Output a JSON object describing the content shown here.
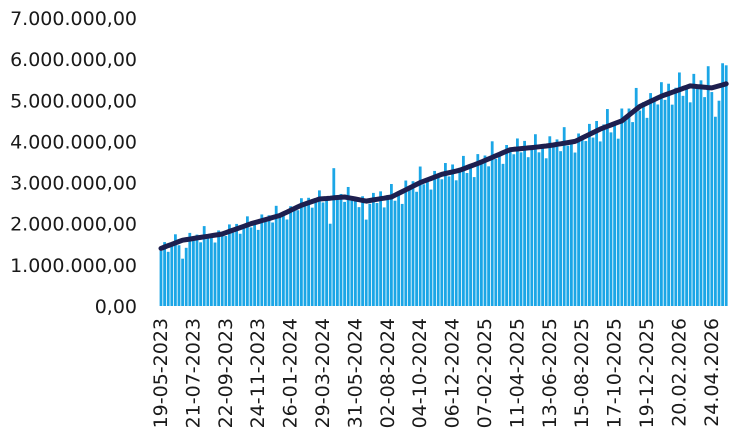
{
  "chart_data": {
    "type": "bar",
    "categories": [
      "19-05-2023",
      null,
      null,
      null,
      null,
      null,
      null,
      null,
      null,
      "21-07-2023",
      null,
      null,
      null,
      null,
      null,
      null,
      null,
      null,
      "22-09-2023",
      null,
      null,
      null,
      null,
      null,
      null,
      null,
      null,
      "24-11-2023",
      null,
      null,
      null,
      null,
      null,
      null,
      null,
      null,
      "26-01-2024",
      null,
      null,
      null,
      null,
      null,
      null,
      null,
      null,
      "29-03-2024",
      null,
      null,
      null,
      null,
      null,
      null,
      null,
      null,
      "31-05-2024",
      null,
      null,
      null,
      null,
      null,
      null,
      null,
      null,
      "02-08-2024",
      null,
      null,
      null,
      null,
      null,
      null,
      null,
      null,
      "04-10-2024",
      null,
      null,
      null,
      null,
      null,
      null,
      null,
      null,
      "06-12-2024",
      null,
      null,
      null,
      null,
      null,
      null,
      null,
      null,
      "07-02-2025",
      null,
      null,
      null,
      null,
      null,
      null,
      null,
      null,
      "11-04-2025",
      null,
      null,
      null,
      null,
      null,
      null,
      null,
      null,
      "13-06-2025",
      null,
      null,
      null,
      null,
      null,
      null,
      null,
      null,
      "15-08-2025",
      null,
      null,
      null,
      null,
      null,
      null,
      null,
      null,
      "17-10-2025",
      null,
      null,
      null,
      null,
      null,
      null,
      null,
      null,
      "19-12-2025",
      null,
      null,
      null,
      null,
      null,
      null,
      null,
      null,
      "20.02.2026",
      null,
      null,
      null,
      null,
      null,
      null,
      null,
      null,
      "24.04.2026",
      null,
      null,
      null,
      null
    ],
    "series": [
      {
        "type": "bar",
        "color": "#1ba6e6",
        "values": [
          1340000,
          1553000,
          1317000,
          1540000,
          1743000,
          1477000,
          1150000,
          1414000,
          1777000,
          1611000,
          1735000,
          1548000,
          1942000,
          1645000,
          1739000,
          1543000,
          1836000,
          1750000,
          1701000,
          1983000,
          1784000,
          1995000,
          1756000,
          1978000,
          2179000,
          1910000,
          2035000,
          1850000,
          2225000,
          2070000,
          2205000,
          2030000,
          2435000,
          2150000,
          2272000,
          2103000,
          2425000,
          2367000,
          2328000,
          2620000,
          2420000,
          2630000,
          2390000,
          2610000,
          2810000,
          2517000,
          2624000,
          2000000,
          3350000,
          2606000,
          2723000,
          2530000,
          2893000,
          2567000,
          2630000,
          2403000,
          2667000,
          2100000,
          2484000,
          2749000,
          2503000,
          2787000,
          2396000,
          2696000,
          2965000,
          2559000,
          2753000,
          2481000,
          3050000,
          2824000,
          3033000,
          2776000,
          3390000,
          2958000,
          3112000,
          2830000,
          3283000,
          3167000,
          3080000,
          3475000,
          3150000,
          3440000,
          3055000,
          3360000,
          3648000,
          3232000,
          3415000,
          3133000,
          3692000,
          3455000,
          3658000,
          3395000,
          4003000,
          3575000,
          3733000,
          3455000,
          3913000,
          3800000,
          3688000,
          4072000,
          3735000,
          4013000,
          3617000,
          3910000,
          4175000,
          3735000,
          3895000,
          3590000,
          4125000,
          3869000,
          4049000,
          3763000,
          4347000,
          3896000,
          4031000,
          3730000,
          4193000,
          4086000,
          4009000,
          4426000,
          4094000,
          4497000,
          4000000,
          4413000,
          4787000,
          4220000,
          4453000,
          4067000,
          4800000,
          4510000,
          4800000,
          4470000,
          5300000,
          4750000,
          4952000,
          4573000,
          5175000,
          5017000,
          4898000,
          5440000,
          5011000,
          5403000,
          4894000,
          5305000,
          5676000,
          5108000,
          5339000,
          4950000,
          5642000,
          5273000,
          5485000,
          5077000,
          5828000,
          5200000,
          4600000,
          4990000,
          5900000,
          5850000
        ]
      },
      {
        "type": "line",
        "color": "#1d1f4f",
        "values": [
          1400000,
          1433000,
          1467000,
          1500000,
          1533000,
          1567000,
          1600000,
          1614000,
          1627000,
          1641000,
          1655000,
          1668000,
          1682000,
          1695000,
          1709000,
          1723000,
          1736000,
          1750000,
          1781000,
          1813000,
          1844000,
          1875000,
          1906000,
          1938000,
          1969000,
          2000000,
          2025000,
          2050000,
          2075000,
          2100000,
          2125000,
          2150000,
          2175000,
          2200000,
          2242000,
          2283000,
          2325000,
          2367000,
          2408000,
          2450000,
          2480000,
          2510000,
          2540000,
          2570000,
          2600000,
          2607000,
          2614000,
          2621000,
          2629000,
          2636000,
          2643000,
          2650000,
          2633000,
          2617000,
          2600000,
          2583000,
          2567000,
          2550000,
          2564000,
          2579000,
          2593000,
          2607000,
          2621000,
          2636000,
          2650000,
          2694000,
          2738000,
          2781000,
          2825000,
          2869000,
          2913000,
          2956000,
          3000000,
          3033000,
          3067000,
          3100000,
          3133000,
          3167000,
          3200000,
          3220000,
          3240000,
          3260000,
          3280000,
          3300000,
          3333000,
          3367000,
          3400000,
          3433000,
          3467000,
          3500000,
          3538000,
          3575000,
          3613000,
          3650000,
          3688000,
          3725000,
          3763000,
          3800000,
          3808000,
          3817000,
          3825000,
          3833000,
          3842000,
          3850000,
          3860000,
          3870000,
          3880000,
          3890000,
          3900000,
          3914000,
          3929000,
          3943000,
          3957000,
          3971000,
          3986000,
          4000000,
          4043000,
          4086000,
          4129000,
          4171000,
          4214000,
          4257000,
          4300000,
          4333000,
          4367000,
          4400000,
          4433000,
          4467000,
          4500000,
          4570000,
          4640000,
          4710000,
          4780000,
          4850000,
          4892000,
          4933000,
          4975000,
          5017000,
          5058000,
          5100000,
          5131000,
          5163000,
          5194000,
          5225000,
          5256000,
          5288000,
          5319000,
          5350000,
          5342000,
          5333000,
          5325000,
          5317000,
          5308000,
          5300000,
          5325000,
          5350000,
          5375000,
          5400000
        ]
      }
    ],
    "ylim": [
      0,
      7000000
    ],
    "yticks": [
      {
        "value": 0,
        "label": "0,00"
      },
      {
        "value": 1000000,
        "label": "1.000.000,00"
      },
      {
        "value": 2000000,
        "label": "2.000.000,00"
      },
      {
        "value": 3000000,
        "label": "3.000.000,00"
      },
      {
        "value": 4000000,
        "label": "4.000.000,00"
      },
      {
        "value": 5000000,
        "label": "5.000.000,00"
      },
      {
        "value": 6000000,
        "label": "6.000.000,00"
      },
      {
        "value": 7000000,
        "label": "7.000.000,00"
      }
    ],
    "grid": false
  }
}
